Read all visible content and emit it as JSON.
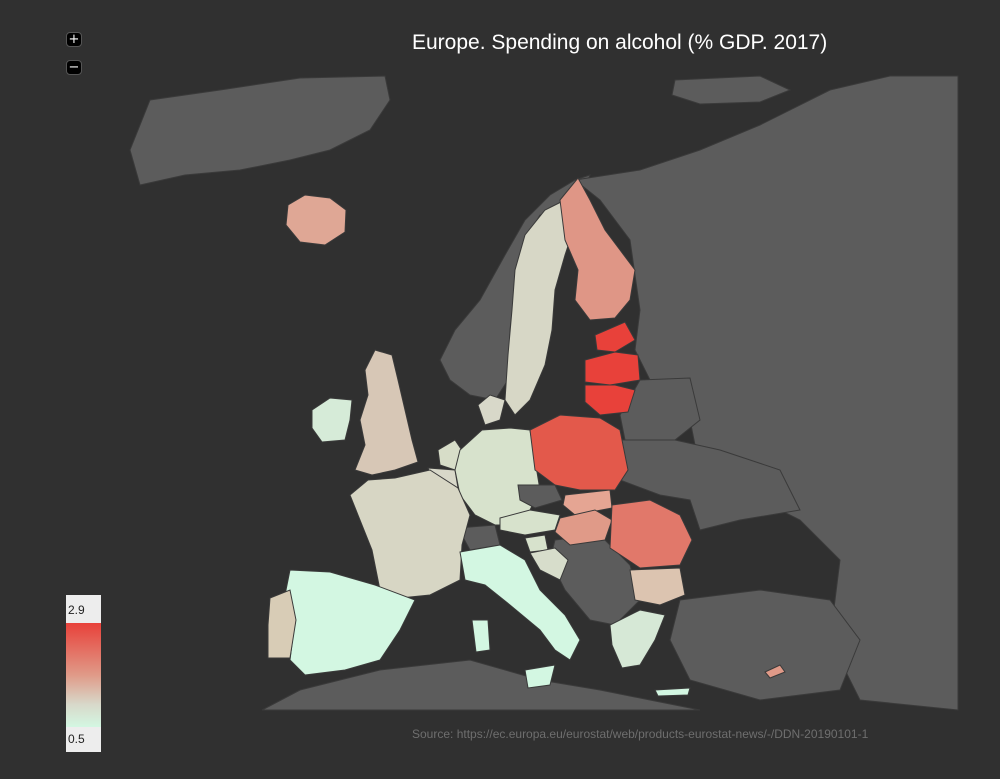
{
  "title": "Europe. Spending on alcohol (% GDP. 2017)",
  "source": "Source: https://ec.europa.eu/eurostat/web/products-eurostat-news/-/DDN-20190101-1",
  "zoom": {
    "in_label": "+",
    "out_label": "−"
  },
  "legend": {
    "max_label": "2.9",
    "min_label": "0.5",
    "min": 0.5,
    "max": 2.9
  },
  "colors": {
    "background": "#303030",
    "land_no_data": "#5c5c5c",
    "scale_low": "#d3f7e2",
    "scale_mid": "#d8d8c9",
    "scale_high": "#e8413a"
  }
}
